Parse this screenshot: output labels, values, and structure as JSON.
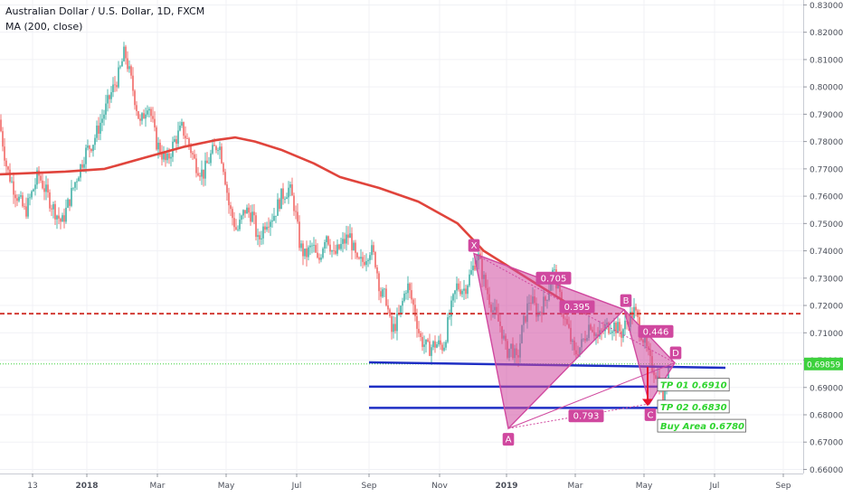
{
  "header": {
    "title": "Australian Dollar / U.S. Dollar, 1D, FXCM",
    "indicator": "MA (200, close)"
  },
  "colors": {
    "up": "#26a69a",
    "down": "#ef5350",
    "ma": "#e0443c",
    "pattern": "#d0489f",
    "level": "#1f2fc4",
    "resistance": "#d23b34",
    "current_line": "#3dd13d",
    "label_green": "#2fd42f",
    "arrow": "#e8112d"
  },
  "chart_data": {
    "type": "candlestick",
    "x_ticks": [
      "13",
      "2018",
      "Mar",
      "May",
      "Jul",
      "Sep",
      "Nov",
      "2019",
      "Mar",
      "May",
      "Jul",
      "Sep"
    ],
    "y_ticks": [
      "0.83000",
      "0.82000",
      "0.81000",
      "0.80000",
      "0.79000",
      "0.78000",
      "0.77000",
      "0.76000",
      "0.75000",
      "0.74000",
      "0.73000",
      "0.72000",
      "0.71000",
      "0.70000",
      "0.69000",
      "0.68000",
      "0.67000",
      "0.66000"
    ],
    "ylim": [
      0.6585,
      0.8318
    ],
    "current_price": "0.69859",
    "resistance_level": 0.717,
    "support_levels": [
      0.6982,
      0.6903,
      0.6825
    ],
    "pattern_points": [
      {
        "label": "X",
        "value": 0.739
      },
      {
        "label": "A",
        "value": 0.675
      },
      {
        "label": "B",
        "value": 0.7185
      },
      {
        "label": "C",
        "value": 0.684
      },
      {
        "label": "D",
        "value": 0.699
      }
    ],
    "ratios": [
      "0.705",
      "0.395",
      "0.446",
      "0.793"
    ],
    "targets": [
      "TP 01 0.6910",
      "TP 02 0.6830",
      "Buy Area 0.6780"
    ],
    "price_path": [
      [
        0.788,
        0
      ],
      [
        0.77,
        6
      ],
      [
        0.762,
        12
      ],
      [
        0.754,
        20
      ],
      [
        0.768,
        30
      ],
      [
        0.757,
        40
      ],
      [
        0.75,
        48
      ],
      [
        0.765,
        58
      ],
      [
        0.776,
        66
      ],
      [
        0.78,
        72
      ],
      [
        0.79,
        80
      ],
      [
        0.798,
        86
      ],
      [
        0.805,
        92
      ],
      [
        0.813,
        96
      ],
      [
        0.8,
        102
      ],
      [
        0.786,
        108
      ],
      [
        0.795,
        114
      ],
      [
        0.78,
        120
      ],
      [
        0.772,
        128
      ],
      [
        0.78,
        134
      ],
      [
        0.785,
        140
      ],
      [
        0.778,
        146
      ],
      [
        0.772,
        150
      ],
      [
        0.768,
        156
      ],
      [
        0.775,
        162
      ],
      [
        0.78,
        168
      ],
      [
        0.77,
        172
      ],
      [
        0.756,
        176
      ],
      [
        0.747,
        182
      ],
      [
        0.755,
        188
      ],
      [
        0.753,
        194
      ],
      [
        0.743,
        198
      ],
      [
        0.751,
        204
      ],
      [
        0.753,
        210
      ],
      [
        0.76,
        216
      ],
      [
        0.763,
        222
      ],
      [
        0.756,
        226
      ],
      [
        0.742,
        230
      ],
      [
        0.738,
        234
      ],
      [
        0.742,
        240
      ],
      [
        0.735,
        244
      ],
      [
        0.747,
        250
      ],
      [
        0.738,
        256
      ],
      [
        0.742,
        262
      ],
      [
        0.746,
        268
      ],
      [
        0.735,
        274
      ],
      [
        0.736,
        278
      ],
      [
        0.741,
        284
      ],
      [
        0.736,
        288
      ],
      [
        0.724,
        292
      ],
      [
        0.723,
        296
      ],
      [
        0.71,
        300
      ],
      [
        0.716,
        306
      ],
      [
        0.728,
        312
      ],
      [
        0.718,
        318
      ],
      [
        0.708,
        322
      ],
      [
        0.704,
        328
      ],
      [
        0.706,
        334
      ],
      [
        0.705,
        340
      ],
      [
        0.715,
        344
      ],
      [
        0.727,
        350
      ],
      [
        0.726,
        356
      ],
      [
        0.733,
        362
      ],
      [
        0.739,
        366
      ],
      [
        0.727,
        372
      ],
      [
        0.718,
        378
      ],
      [
        0.712,
        384
      ],
      [
        0.703,
        388
      ],
      [
        0.705,
        392
      ],
      [
        0.699,
        396
      ],
      [
        0.711,
        400
      ],
      [
        0.723,
        406
      ],
      [
        0.717,
        412
      ],
      [
        0.722,
        418
      ],
      [
        0.733,
        424
      ],
      [
        0.725,
        428
      ],
      [
        0.716,
        432
      ],
      [
        0.71,
        436
      ],
      [
        0.702,
        440
      ],
      [
        0.706,
        446
      ],
      [
        0.714,
        452
      ],
      [
        0.708,
        458
      ],
      [
        0.712,
        464
      ],
      [
        0.713,
        470
      ],
      [
        0.71,
        476
      ],
      [
        0.714,
        480
      ],
      [
        0.718,
        486
      ],
      [
        0.712,
        490
      ],
      [
        0.706,
        494
      ],
      [
        0.699,
        498
      ],
      [
        0.696,
        502
      ],
      [
        0.69,
        506
      ],
      [
        0.684,
        508
      ],
      [
        0.688,
        510
      ],
      [
        0.6986,
        512
      ]
    ],
    "ma_path": [
      [
        0.768,
        0
      ],
      [
        0.769,
        50
      ],
      [
        0.77,
        80
      ],
      [
        0.774,
        110
      ],
      [
        0.778,
        140
      ],
      [
        0.7805,
        165
      ],
      [
        0.7815,
        180
      ],
      [
        0.78,
        195
      ],
      [
        0.777,
        215
      ],
      [
        0.772,
        240
      ],
      [
        0.767,
        260
      ],
      [
        0.763,
        290
      ],
      [
        0.758,
        320
      ],
      [
        0.75,
        350
      ],
      [
        0.74,
        370
      ],
      [
        0.734,
        390
      ],
      [
        0.728,
        410
      ],
      [
        0.722,
        430
      ],
      [
        0.717,
        448
      ]
    ]
  }
}
